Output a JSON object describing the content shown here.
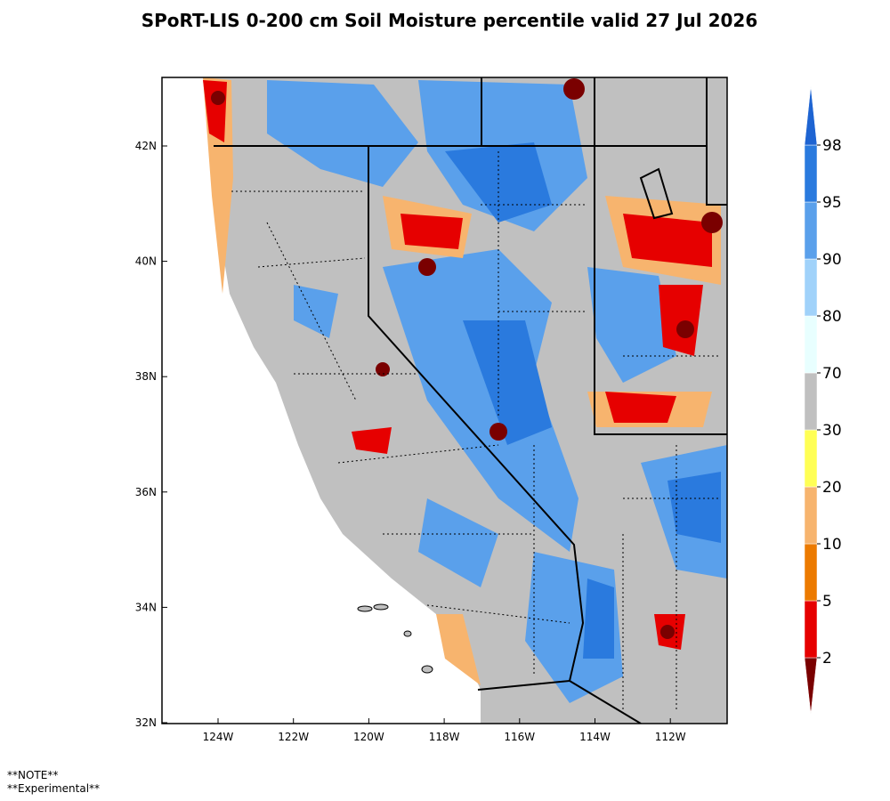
{
  "title": "SPoRT-LIS 0-200 cm Soil Moisture percentile valid 27 Jul 2026",
  "map": {
    "lat_labels": [
      "42N",
      "40N",
      "38N",
      "36N",
      "34N",
      "32N"
    ],
    "lon_labels": [
      "124W",
      "122W",
      "120W",
      "118W",
      "116W",
      "114W",
      "112W"
    ]
  },
  "colorbar": {
    "levels": [
      2,
      5,
      10,
      20,
      30,
      70,
      80,
      90,
      95,
      98
    ],
    "colors": [
      "#7a0000",
      "#e60000",
      "#ec7a00",
      "#f7b46e",
      "#ffff55",
      "#c0c0c0",
      "#e8ffff",
      "#a0d2fa",
      "#5aa0eb",
      "#2a7ade",
      "#1e64d2"
    ]
  },
  "notes": [
    "**NOTE**",
    "**Experimental**"
  ]
}
